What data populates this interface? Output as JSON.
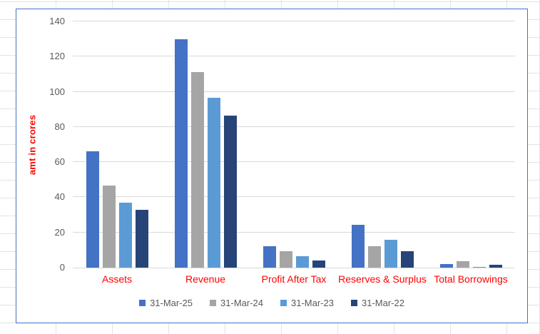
{
  "chart_data": {
    "type": "bar",
    "title": "",
    "xlabel": "",
    "ylabel": "amt in crores",
    "ylim": [
      0,
      140
    ],
    "yticks": [
      0,
      20,
      40,
      60,
      80,
      100,
      120,
      140
    ],
    "grid": true,
    "legend_position": "bottom",
    "categories": [
      "Assets",
      "Revenue",
      "Profit After Tax",
      "Reserves & Surplus",
      "Total Borrowings"
    ],
    "series": [
      {
        "name": "31-Mar-25",
        "color": "#4472C4",
        "values": [
          66,
          130,
          12.3,
          24.5,
          2.2
        ]
      },
      {
        "name": "31-Mar-24",
        "color": "#A5A5A5",
        "values": [
          46.5,
          111,
          9.5,
          12,
          3.6
        ]
      },
      {
        "name": "31-Mar-23",
        "color": "#5B9BD5",
        "values": [
          37,
          96.5,
          6.5,
          16,
          0.6
        ]
      },
      {
        "name": "31-Mar-22",
        "color": "#264478",
        "values": [
          33,
          86.5,
          4,
          9.5,
          1.6
        ]
      }
    ]
  },
  "styles": {
    "category_label_color": "#FF0000",
    "axis_title_color": "#FF0000",
    "tick_label_color": "#595959",
    "legend_text_color": "#595959",
    "gridline_color": "#D9D9D9",
    "chart_border_color": "#4472C4",
    "sheet_gridline_color": "#E3E3E3"
  }
}
